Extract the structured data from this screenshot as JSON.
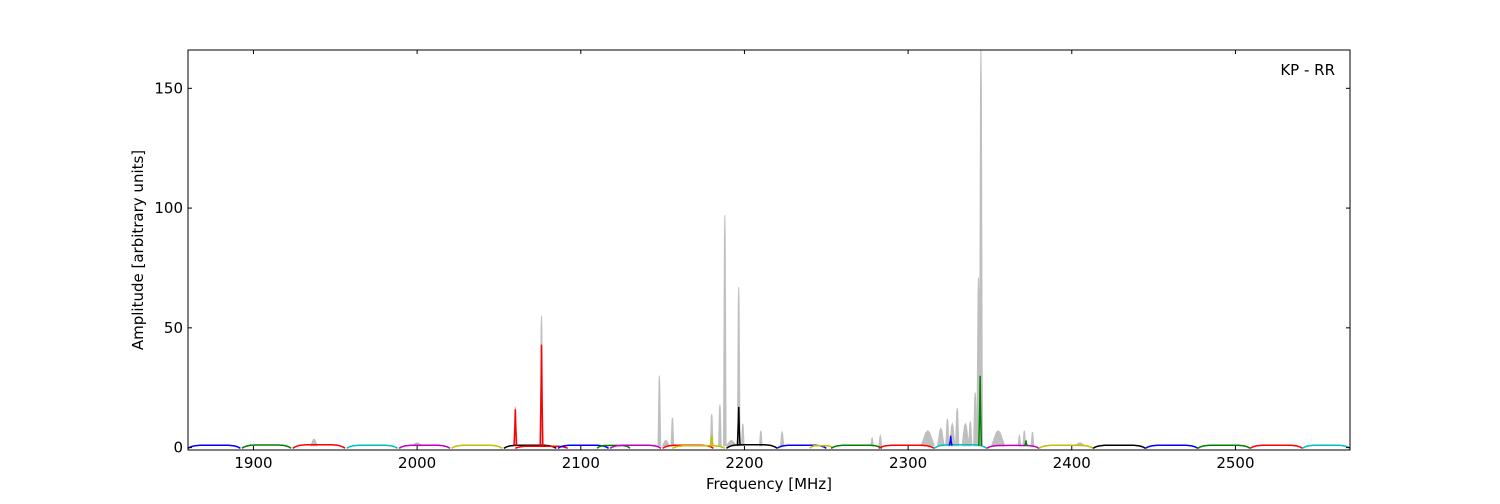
{
  "chart_data": {
    "type": "line",
    "annotation": "KP - RR",
    "xlabel": "Frequency [MHz]",
    "ylabel": "Amplitude [arbitrary units]",
    "xlim": [
      1860,
      2570
    ],
    "ylim": [
      -1,
      166
    ],
    "xticks": [
      1900,
      2000,
      2100,
      2200,
      2300,
      2400,
      2500
    ],
    "yticks": [
      0,
      50,
      100,
      150
    ],
    "grid": false,
    "segments": [
      {
        "start": 1860,
        "end": 1892,
        "color": "#0000ff",
        "level": 1.0
      },
      {
        "start": 1893,
        "end": 1923,
        "color": "#008000",
        "level": 1.1
      },
      {
        "start": 1924,
        "end": 1956,
        "color": "#ff0000",
        "level": 1.2
      },
      {
        "start": 1957,
        "end": 1988,
        "color": "#00bfbf",
        "level": 1.0
      },
      {
        "start": 1989,
        "end": 2020,
        "color": "#bf00bf",
        "level": 1.0
      },
      {
        "start": 2021,
        "end": 2052,
        "color": "#bfbf00",
        "level": 1.0
      },
      {
        "start": 2053,
        "end": 2085,
        "color": "#000000",
        "level": 1.0
      },
      {
        "start": 2060,
        "end": 2092,
        "color": "#ff0000",
        "level": 0.6
      },
      {
        "start": 2086,
        "end": 2117,
        "color": "#0000ff",
        "level": 1.0
      },
      {
        "start": 2110,
        "end": 2130,
        "color": "#008000",
        "level": 0.9
      },
      {
        "start": 2118,
        "end": 2149,
        "color": "#bf00bf",
        "level": 1.0
      },
      {
        "start": 2150,
        "end": 2181,
        "color": "#ff0000",
        "level": 1.0
      },
      {
        "start": 2156,
        "end": 2188,
        "color": "#bfbf00",
        "level": 0.8
      },
      {
        "start": 2189,
        "end": 2220,
        "color": "#000000",
        "level": 1.2
      },
      {
        "start": 2220,
        "end": 2250,
        "color": "#0000ff",
        "level": 1.0
      },
      {
        "start": 2240,
        "end": 2254,
        "color": "#bfbf00",
        "level": 0.8
      },
      {
        "start": 2253,
        "end": 2284,
        "color": "#008000",
        "level": 1.0
      },
      {
        "start": 2282,
        "end": 2316,
        "color": "#ff0000",
        "level": 1.0
      },
      {
        "start": 2316,
        "end": 2348,
        "color": "#00bfbf",
        "level": 1.2
      },
      {
        "start": 2348,
        "end": 2380,
        "color": "#bf00bf",
        "level": 0.9
      },
      {
        "start": 2380,
        "end": 2413,
        "color": "#bfbf00",
        "level": 1.0
      },
      {
        "start": 2413,
        "end": 2445,
        "color": "#000000",
        "level": 1.0
      },
      {
        "start": 2445,
        "end": 2477,
        "color": "#0000ff",
        "level": 1.0
      },
      {
        "start": 2477,
        "end": 2509,
        "color": "#008000",
        "level": 1.0
      },
      {
        "start": 2509,
        "end": 2541,
        "color": "#ff0000",
        "level": 1.0
      },
      {
        "start": 2541,
        "end": 2570,
        "color": "#00bfbf",
        "level": 1.0
      }
    ],
    "gray_peaks": [
      {
        "x": 1937,
        "y": 3.5,
        "w": 2
      },
      {
        "x": 2000,
        "y": 2,
        "w": 3
      },
      {
        "x": 2060,
        "y": 17,
        "w": 0.8
      },
      {
        "x": 2076,
        "y": 55,
        "w": 0.8
      },
      {
        "x": 2148,
        "y": 30,
        "w": 0.8
      },
      {
        "x": 2152,
        "y": 3,
        "w": 2
      },
      {
        "x": 2156,
        "y": 12.5,
        "w": 0.8
      },
      {
        "x": 2180,
        "y": 14,
        "w": 0.8
      },
      {
        "x": 2185,
        "y": 18,
        "w": 0.8
      },
      {
        "x": 2188,
        "y": 97,
        "w": 0.8
      },
      {
        "x": 2192,
        "y": 3,
        "w": 3
      },
      {
        "x": 2196.5,
        "y": 67,
        "w": 0.8
      },
      {
        "x": 2199,
        "y": 10,
        "w": 0.8
      },
      {
        "x": 2210,
        "y": 7,
        "w": 0.8
      },
      {
        "x": 2223,
        "y": 6.5,
        "w": 1
      },
      {
        "x": 2278,
        "y": 4,
        "w": 0.8
      },
      {
        "x": 2283,
        "y": 5,
        "w": 0.8
      },
      {
        "x": 2312,
        "y": 7,
        "w": 4
      },
      {
        "x": 2320,
        "y": 8,
        "w": 2
      },
      {
        "x": 2324,
        "y": 12,
        "w": 1
      },
      {
        "x": 2327,
        "y": 10,
        "w": 1.5
      },
      {
        "x": 2330,
        "y": 16.5,
        "w": 1
      },
      {
        "x": 2335,
        "y": 10,
        "w": 2
      },
      {
        "x": 2338,
        "y": 11,
        "w": 1
      },
      {
        "x": 2341,
        "y": 23,
        "w": 1
      },
      {
        "x": 2343,
        "y": 71,
        "w": 1
      },
      {
        "x": 2344.5,
        "y": 166,
        "w": 0.9
      },
      {
        "x": 2355,
        "y": 7,
        "w": 4
      },
      {
        "x": 2368,
        "y": 5,
        "w": 0.8
      },
      {
        "x": 2371,
        "y": 7,
        "w": 0.8
      },
      {
        "x": 2376,
        "y": 6.5,
        "w": 0.8
      },
      {
        "x": 2405,
        "y": 2,
        "w": 3
      }
    ],
    "colored_peaks": [
      {
        "x": 2060,
        "y": 16,
        "color": "#ff0000"
      },
      {
        "x": 2076,
        "y": 43,
        "color": "#ff0000"
      },
      {
        "x": 2180,
        "y": 5,
        "color": "#bfbf00"
      },
      {
        "x": 2196.5,
        "y": 17,
        "color": "#000000"
      },
      {
        "x": 2326,
        "y": 5,
        "color": "#0000ff"
      },
      {
        "x": 2344,
        "y": 30,
        "color": "#008000"
      },
      {
        "x": 2372,
        "y": 3,
        "color": "#008000"
      }
    ],
    "gray_color": "#bfbfbf"
  }
}
